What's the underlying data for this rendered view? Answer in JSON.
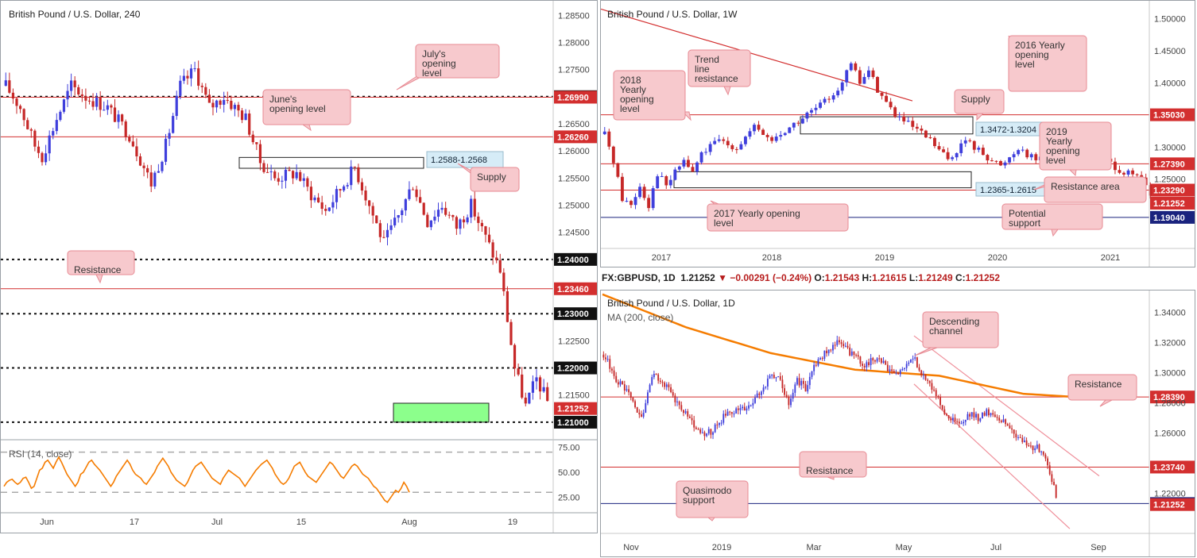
{
  "colors": {
    "bull": "#3f3fdc",
    "bear": "#c62828",
    "level_red": "#d32f2f",
    "level_dark": "#111111",
    "level_blue": "#1a237e",
    "ma": "#f57c00",
    "rsi": "#f57c00",
    "supportZone": "#8cff8c",
    "callout_bg": "#f7c9cd",
    "callout_border": "#e78a93",
    "channel": "#ef8f9a"
  },
  "header_1d": {
    "symbol": "FX:GBPUSD, 1D",
    "last": "1.21252",
    "arrow": "▼",
    "change": "−0.00291 (−0.24%)",
    "o_label": "O:",
    "o": "1.21543",
    "h_label": "H:",
    "h": "1.21615",
    "l_label": "L:",
    "l": "1.21249",
    "c_label": "C:",
    "c": "1.21252"
  },
  "chart_data": [
    {
      "id": "h4",
      "type": "candlestick",
      "title": "British Pound / U.S. Dollar, 240",
      "ylim": [
        1.2075,
        1.2865
      ],
      "y_ticks": [
        "1.28500",
        "1.28000",
        "1.27500",
        "1.26500",
        "1.26000",
        "1.25500",
        "1.25000",
        "1.24500",
        "1.22500",
        "1.21500"
      ],
      "x_ticks": [
        "Jun",
        "17",
        "Jul",
        "15",
        "Aug",
        "19"
      ],
      "path": [
        [
          0,
          1.272
        ],
        [
          4,
          1.268
        ],
        [
          8,
          1.261
        ],
        [
          10,
          1.259
        ],
        [
          14,
          1.266
        ],
        [
          18,
          1.272
        ],
        [
          22,
          1.27
        ],
        [
          28,
          1.268
        ],
        [
          34,
          1.263
        ],
        [
          40,
          1.254
        ],
        [
          44,
          1.261
        ],
        [
          48,
          1.272
        ],
        [
          52,
          1.275
        ],
        [
          56,
          1.268
        ],
        [
          60,
          1.27
        ],
        [
          66,
          1.266
        ],
        [
          70,
          1.258
        ],
        [
          74,
          1.255
        ],
        [
          80,
          1.256
        ],
        [
          84,
          1.252
        ],
        [
          88,
          1.249
        ],
        [
          92,
          1.253
        ],
        [
          96,
          1.257
        ],
        [
          100,
          1.25
        ],
        [
          104,
          1.243
        ],
        [
          108,
          1.248
        ],
        [
          112,
          1.254
        ],
        [
          116,
          1.247
        ],
        [
          120,
          1.25
        ],
        [
          124,
          1.246
        ],
        [
          128,
          1.25
        ],
        [
          132,
          1.244
        ],
        [
          136,
          1.238
        ],
        [
          140,
          1.22
        ],
        [
          143,
          1.213
        ],
        [
          146,
          1.218
        ],
        [
          150,
          1.2125
        ]
      ],
      "levels": [
        {
          "value": 1.27,
          "label": "1.27000",
          "style": "dotted",
          "color": "#111111"
        },
        {
          "value": 1.2699,
          "label": "1.26990",
          "style": "solid",
          "color": "#d32f2f"
        },
        {
          "value": 1.2626,
          "label": "1.26260",
          "style": "solid",
          "color": "#d32f2f"
        },
        {
          "value": 1.24,
          "label": "1.24000",
          "style": "dotted",
          "color": "#111111"
        },
        {
          "value": 1.2346,
          "label": "1.23460",
          "style": "solid",
          "color": "#d32f2f"
        },
        {
          "value": 1.23,
          "label": "1.23000",
          "style": "dotted",
          "color": "#111111"
        },
        {
          "value": 1.22,
          "label": "1.22000",
          "style": "dotted",
          "color": "#111111"
        },
        {
          "value": 1.21252,
          "label": "1.21252",
          "style": "none",
          "color": "#d32f2f"
        },
        {
          "value": 1.21,
          "label": "1.21000",
          "style": "dotted",
          "color": "#111111"
        }
      ],
      "zones": [
        {
          "kind": "supply",
          "label": "1.2588-1.2568",
          "top": 1.2588,
          "bottom": 1.2568
        },
        {
          "kind": "support",
          "top": 1.2135,
          "bottom": 1.21
        }
      ],
      "callouts": [
        "July's opening level",
        "June's opening level",
        "Supply",
        "Resistance"
      ],
      "rsi": {
        "label": "RSI (14, close)",
        "ylim": [
          12,
          80
        ],
        "ticks": [
          "75.00",
          "50.00",
          "25.00"
        ],
        "bands": [
          30,
          70
        ],
        "values": [
          36,
          40,
          42,
          43,
          40,
          38,
          40,
          44,
          45,
          40,
          34,
          36,
          44,
          52,
          54,
          60,
          62,
          58,
          54,
          60,
          65,
          60,
          54,
          48,
          44,
          40,
          36,
          40,
          48,
          50,
          55,
          60,
          62,
          58,
          55,
          52,
          48,
          44,
          40,
          36,
          40,
          46,
          50,
          54,
          58,
          62,
          58,
          52,
          48,
          46,
          44,
          40,
          38,
          42,
          46,
          50,
          56,
          60,
          64,
          60,
          56,
          50,
          46,
          42,
          40,
          38,
          36,
          40,
          46,
          52,
          56,
          58,
          60,
          56,
          52,
          48,
          44,
          42,
          40,
          38,
          44,
          48,
          52,
          50,
          48,
          46,
          44,
          40,
          36,
          40,
          44,
          48,
          52,
          55,
          58,
          60,
          62,
          58,
          54,
          48,
          44,
          40,
          38,
          40,
          44,
          50,
          56,
          58,
          60,
          55,
          50,
          46,
          44,
          42,
          40,
          44,
          48,
          52,
          56,
          60,
          58,
          54,
          50,
          46,
          44,
          48,
          52,
          56,
          58,
          56,
          52,
          48,
          46,
          44,
          40,
          36,
          34,
          30,
          26,
          22,
          20,
          24,
          28,
          32,
          30,
          34,
          40,
          36,
          30
        ]
      }
    },
    {
      "id": "w1",
      "type": "candlestick",
      "title": "British Pound / U.S. Dollar, 1W",
      "ylim": [
        1.142,
        1.518
      ],
      "y_ticks": [
        "1.50000",
        "1.45000",
        "1.40000",
        "1.30000",
        "1.25000"
      ],
      "x_ticks": [
        "2017",
        "2018",
        "2019",
        "2020",
        "2021"
      ],
      "path": [
        [
          0,
          1.32
        ],
        [
          2,
          1.28
        ],
        [
          4,
          1.22
        ],
        [
          6,
          1.21
        ],
        [
          8,
          1.24
        ],
        [
          10,
          1.21
        ],
        [
          12,
          1.26
        ],
        [
          14,
          1.24
        ],
        [
          18,
          1.28
        ],
        [
          20,
          1.26
        ],
        [
          22,
          1.29
        ],
        [
          26,
          1.31
        ],
        [
          30,
          1.3
        ],
        [
          34,
          1.33
        ],
        [
          38,
          1.31
        ],
        [
          42,
          1.33
        ],
        [
          46,
          1.35
        ],
        [
          50,
          1.37
        ],
        [
          54,
          1.4
        ],
        [
          56,
          1.43
        ],
        [
          58,
          1.4
        ],
        [
          60,
          1.42
        ],
        [
          62,
          1.39
        ],
        [
          66,
          1.35
        ],
        [
          70,
          1.33
        ],
        [
          74,
          1.31
        ],
        [
          78,
          1.28
        ],
        [
          82,
          1.31
        ],
        [
          86,
          1.29
        ],
        [
          90,
          1.27
        ],
        [
          94,
          1.3
        ],
        [
          98,
          1.28
        ],
        [
          102,
          1.31
        ],
        [
          106,
          1.32
        ],
        [
          110,
          1.31
        ],
        [
          114,
          1.28
        ],
        [
          118,
          1.26
        ],
        [
          122,
          1.25
        ],
        [
          125,
          1.21
        ]
      ],
      "levels": [
        {
          "value": 1.3503,
          "label": "1.35030",
          "style": "solid",
          "color": "#d32f2f"
        },
        {
          "value": 1.2739,
          "label": "1.27390",
          "style": "solid",
          "color": "#d32f2f"
        },
        {
          "value": 1.2329,
          "label": "1.23290",
          "style": "solid",
          "color": "#d32f2f"
        },
        {
          "value": 1.21252,
          "label": "1.21252",
          "style": "none",
          "color": "#d32f2f"
        },
        {
          "value": 1.1904,
          "label": "1.19040",
          "style": "solid",
          "color": "#1a237e"
        }
      ],
      "zones": [
        {
          "kind": "supply",
          "label": "1.3472-1.3204",
          "top": 1.3472,
          "bottom": 1.3204
        },
        {
          "kind": "resistance",
          "label": "1.2365-1.2615",
          "top": 1.2615,
          "bottom": 1.2365
        }
      ],
      "trendline": {
        "from": [
          1.515,
          0
        ],
        "to": [
          1.372,
          72
        ]
      },
      "callouts": [
        "Trend line resistance",
        "2018 Yearly opening level",
        "2016 Yearly opening level",
        "Supply",
        "2019 Yearly opening level",
        "Resistance area",
        "2017 Yearly opening level",
        "Potential support"
      ]
    },
    {
      "id": "d1",
      "type": "candlestick",
      "title": "British Pound / U.S. Dollar, 1D",
      "indicator": "MA (200, close)",
      "ylim": [
        1.1955,
        1.3535
      ],
      "y_ticks": [
        "1.34000",
        "1.32000",
        "1.30000",
        "1.28000",
        "1.26000",
        "1.22000"
      ],
      "x_ticks": [
        "Nov",
        "2019",
        "Mar",
        "May",
        "Jul",
        "Sep"
      ],
      "path": [
        [
          0,
          1.312
        ],
        [
          6,
          1.296
        ],
        [
          12,
          1.285
        ],
        [
          18,
          1.27
        ],
        [
          24,
          1.3
        ],
        [
          30,
          1.29
        ],
        [
          38,
          1.275
        ],
        [
          46,
          1.258
        ],
        [
          52,
          1.262
        ],
        [
          58,
          1.272
        ],
        [
          64,
          1.275
        ],
        [
          70,
          1.278
        ],
        [
          76,
          1.29
        ],
        [
          80,
          1.3
        ],
        [
          84,
          1.295
        ],
        [
          88,
          1.28
        ],
        [
          92,
          1.295
        ],
        [
          96,
          1.29
        ],
        [
          100,
          1.305
        ],
        [
          106,
          1.315
        ],
        [
          112,
          1.32
        ],
        [
          118,
          1.312
        ],
        [
          124,
          1.305
        ],
        [
          130,
          1.31
        ],
        [
          136,
          1.302
        ],
        [
          140,
          1.298
        ],
        [
          144,
          1.306
        ],
        [
          148,
          1.31
        ],
        [
          150,
          1.302
        ],
        [
          154,
          1.295
        ],
        [
          158,
          1.285
        ],
        [
          162,
          1.275
        ],
        [
          166,
          1.268
        ],
        [
          170,
          1.265
        ],
        [
          174,
          1.272
        ],
        [
          178,
          1.27
        ],
        [
          182,
          1.274
        ],
        [
          186,
          1.272
        ],
        [
          190,
          1.267
        ],
        [
          194,
          1.262
        ],
        [
          198,
          1.255
        ],
        [
          202,
          1.252
        ],
        [
          206,
          1.25
        ],
        [
          210,
          1.245
        ],
        [
          214,
          1.225
        ],
        [
          216,
          1.2125
        ]
      ],
      "ma200": [
        [
          0,
          1.352
        ],
        [
          40,
          1.33
        ],
        [
          80,
          1.313
        ],
        [
          120,
          1.302
        ],
        [
          160,
          1.298
        ],
        [
          200,
          1.286
        ],
        [
          230,
          1.2835
        ]
      ],
      "levels": [
        {
          "value": 1.2839,
          "label": "1.28390",
          "style": "solid",
          "color": "#d32f2f"
        },
        {
          "value": 1.2374,
          "label": "1.23740",
          "style": "solid",
          "color": "#d32f2f"
        },
        {
          "value": 1.2132,
          "label": "1.21320",
          "style": "solid",
          "color": "#1a237e"
        },
        {
          "value": 1.21252,
          "label": "1.21252",
          "style": "none",
          "color": "#d32f2f"
        }
      ],
      "channel": [
        {
          "from": [
            1.3245,
            148
          ],
          "to": [
            1.2315,
            236
          ]
        },
        {
          "from": [
            1.2925,
            148
          ],
          "to": [
            1.1965,
            222
          ]
        }
      ],
      "callouts": [
        "Descending channel",
        "Resistance",
        "Resistance",
        "Quasimodo support"
      ]
    }
  ]
}
